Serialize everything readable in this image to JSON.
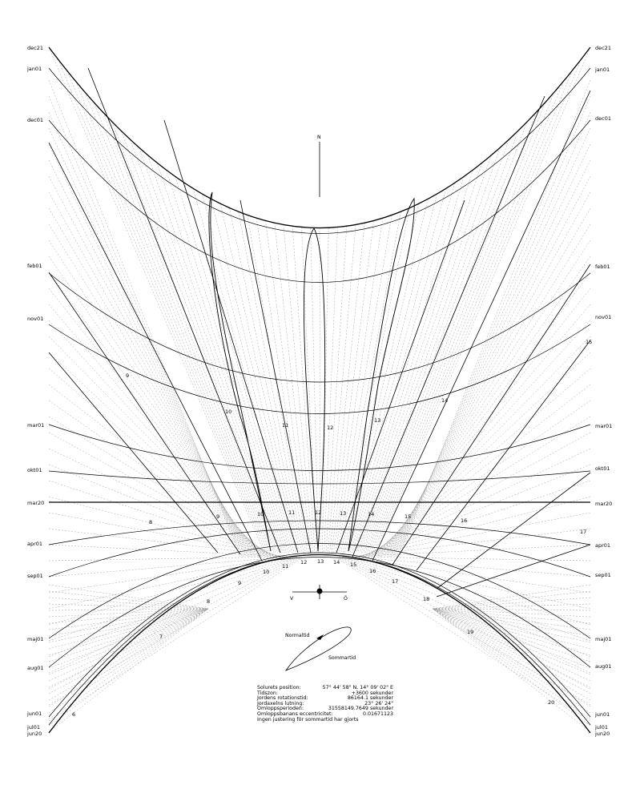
{
  "compass": {
    "north": "N",
    "west": "V",
    "east": "Ö"
  },
  "analemma_labels": {
    "normal": "Normaltid",
    "summer": "Sommartid"
  },
  "month_labels_left": [
    {
      "label": "dec21"
    },
    {
      "label": "jan01"
    },
    {
      "label": "dec01"
    },
    {
      "label": "feb01"
    },
    {
      "label": "nov01"
    },
    {
      "label": "mar01"
    },
    {
      "label": "okt01"
    },
    {
      "label": "mar20"
    },
    {
      "label": "apr01"
    },
    {
      "label": "sep01"
    },
    {
      "label": "maj01"
    },
    {
      "label": "aug01"
    },
    {
      "label": "jun01"
    },
    {
      "label": "jul01"
    },
    {
      "label": "jun20"
    }
  ],
  "month_labels_right": [
    {
      "label": "dec21"
    },
    {
      "label": "jan01"
    },
    {
      "label": "dec01"
    },
    {
      "label": "feb01"
    },
    {
      "label": "nov01"
    },
    {
      "label": "mar01"
    },
    {
      "label": "okt01"
    },
    {
      "label": "mar20"
    },
    {
      "label": "apr01"
    },
    {
      "label": "sep01"
    },
    {
      "label": "maj01"
    },
    {
      "label": "aug01"
    },
    {
      "label": "jun01"
    },
    {
      "label": "jul01"
    },
    {
      "label": "jun20"
    }
  ],
  "hour_labels": [
    {
      "label": "9"
    },
    {
      "label": "10"
    },
    {
      "label": "11"
    },
    {
      "label": "12"
    },
    {
      "label": "13"
    },
    {
      "label": "14"
    },
    {
      "label": "15"
    },
    {
      "label": "9"
    },
    {
      "label": "10"
    },
    {
      "label": "11"
    },
    {
      "label": "12"
    },
    {
      "label": "13"
    },
    {
      "label": "14"
    },
    {
      "label": "15"
    },
    {
      "label": "16"
    },
    {
      "label": "17"
    },
    {
      "label": "8"
    },
    {
      "label": "6"
    },
    {
      "label": "7"
    },
    {
      "label": "8"
    },
    {
      "label": "9"
    },
    {
      "label": "10"
    },
    {
      "label": "11"
    },
    {
      "label": "12"
    },
    {
      "label": "13"
    },
    {
      "label": "14"
    },
    {
      "label": "15"
    },
    {
      "label": "16"
    },
    {
      "label": "17"
    },
    {
      "label": "18"
    },
    {
      "label": "19"
    },
    {
      "label": "20"
    }
  ],
  "info": {
    "rows": [
      {
        "key": "Solurets position:",
        "value": "57° 44' 58\" N, 14° 09' 02\" E"
      },
      {
        "key": "Tidszon:",
        "value": "+3600 sekunder"
      },
      {
        "key": "Jordens rotationstid:",
        "value": "86164.1 sekunder"
      },
      {
        "key": "Jordaxelns lutning:",
        "value": "23° 26' 24\""
      },
      {
        "key": "Omloppsperioden:",
        "value": "31558149.7649 sekunder"
      },
      {
        "key": "Omloppsbanans eccentricitet:",
        "value": "0.01671123"
      }
    ],
    "note": "Ingen justering för sommartid har gjorts"
  }
}
